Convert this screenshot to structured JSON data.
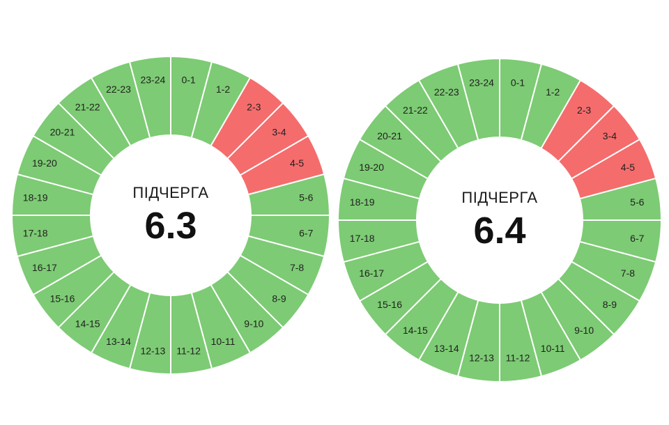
{
  "colors": {
    "power_on": "#7dcb74",
    "power_off": "#f56c6c",
    "divider": "#ffffff",
    "center": "#ffffff"
  },
  "chart_data": [
    {
      "type": "pie",
      "queue_label": "ПІДЧЕРГА",
      "queue_number": "6.3",
      "categories": [
        "0-1",
        "1-2",
        "2-3",
        "3-4",
        "4-5",
        "5-6",
        "6-7",
        "7-8",
        "8-9",
        "9-10",
        "10-11",
        "11-12",
        "12-13",
        "13-14",
        "14-15",
        "15-16",
        "16-17",
        "17-18",
        "18-19",
        "19-20",
        "20-21",
        "21-22",
        "22-23",
        "23-24"
      ],
      "status": [
        "on",
        "on",
        "off",
        "off",
        "off",
        "on",
        "on",
        "on",
        "on",
        "on",
        "on",
        "on",
        "on",
        "on",
        "on",
        "on",
        "on",
        "on",
        "on",
        "on",
        "on",
        "on",
        "on",
        "on"
      ]
    },
    {
      "type": "pie",
      "queue_label": "ПІДЧЕРГА",
      "queue_number": "6.4",
      "categories": [
        "0-1",
        "1-2",
        "2-3",
        "3-4",
        "4-5",
        "5-6",
        "6-7",
        "7-8",
        "8-9",
        "9-10",
        "10-11",
        "11-12",
        "12-13",
        "13-14",
        "14-15",
        "15-16",
        "16-17",
        "17-18",
        "18-19",
        "19-20",
        "20-21",
        "21-22",
        "22-23",
        "23-24"
      ],
      "status": [
        "on",
        "on",
        "off",
        "off",
        "off",
        "on",
        "on",
        "on",
        "on",
        "on",
        "on",
        "on",
        "on",
        "on",
        "on",
        "on",
        "on",
        "on",
        "on",
        "on",
        "on",
        "on",
        "on",
        "on"
      ]
    }
  ]
}
